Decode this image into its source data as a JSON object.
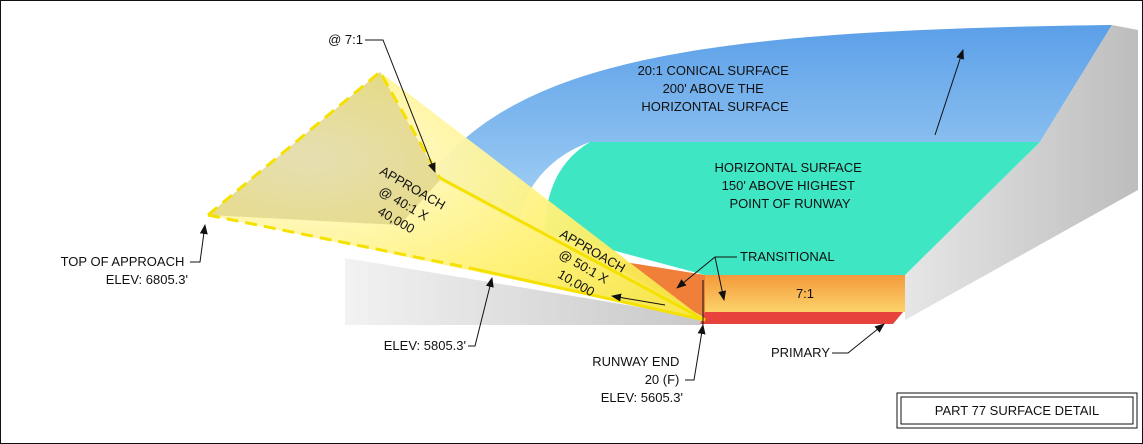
{
  "labels": [
    {
      "lines": [
        "@ 7:1"
      ]
    },
    {
      "lines": [
        "20:1 CONICAL SURFACE",
        "200' ABOVE THE",
        "HORIZONTAL SURFACE"
      ]
    },
    {
      "lines": [
        "HORIZONTAL SURFACE",
        "150' ABOVE HIGHEST",
        "POINT OF RUNWAY"
      ]
    },
    {
      "lines": [
        "APPROACH",
        "@ 40:1 X",
        "40,000"
      ]
    },
    {
      "lines": [
        "APPROACH",
        "@ 50:1 X",
        "10,000"
      ]
    },
    {
      "lines": [
        "TRANSITIONAL"
      ]
    },
    {
      "lines": [
        "7:1"
      ]
    },
    {
      "lines": [
        "TOP OF APPROACH",
        "ELEV: 6805.3'"
      ]
    },
    {
      "lines": [
        "ELEV: 5805.3'"
      ]
    },
    {
      "lines": [
        "RUNWAY END",
        "20 (F)",
        "ELEV: 5605.3'"
      ]
    },
    {
      "lines": [
        "PRIMARY"
      ]
    },
    {
      "lines": [
        "PART 77 SURFACE DETAIL"
      ]
    }
  ]
}
